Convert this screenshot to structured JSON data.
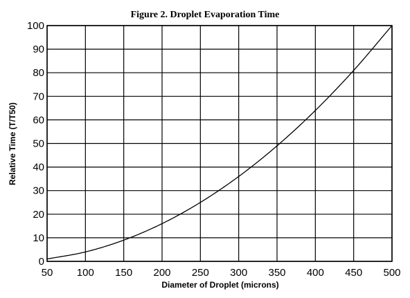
{
  "chart_data": {
    "type": "line",
    "title": "Figure 2.  Droplet Evaporation Time",
    "xlabel": "Diameter of Droplet (microns)",
    "ylabel": "Relative Time (T/T50)",
    "xlim": [
      50,
      500
    ],
    "ylim": [
      0,
      100
    ],
    "xticks": [
      50,
      100,
      150,
      200,
      250,
      300,
      350,
      400,
      450,
      500
    ],
    "yticks": [
      0,
      10,
      20,
      30,
      40,
      50,
      60,
      70,
      80,
      90,
      100
    ],
    "grid": true,
    "legend": "none",
    "series": [
      {
        "x": [
          50,
          100,
          150,
          200,
          250,
          300,
          350,
          400,
          450,
          500
        ],
        "y": [
          1,
          4,
          9,
          16,
          25,
          36,
          49,
          64,
          81,
          100
        ]
      }
    ]
  }
}
